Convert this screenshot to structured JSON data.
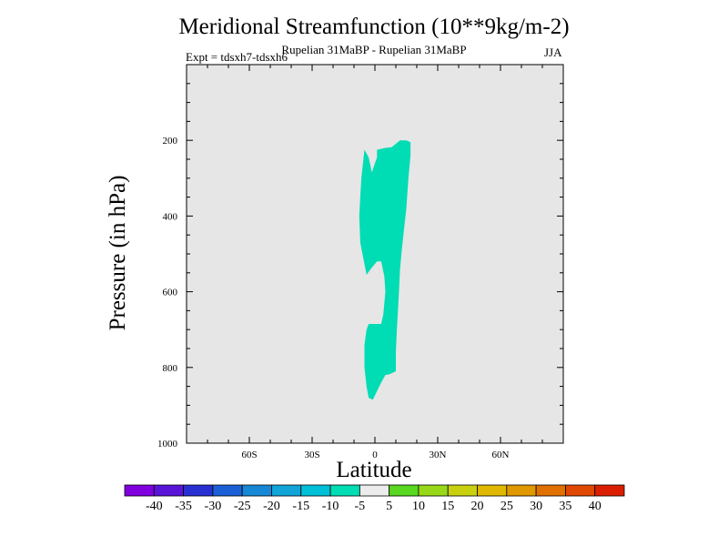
{
  "chart_data": {
    "type": "filled-contour",
    "title": "Meridional Streamfunction (10**9kg/m-2)",
    "subtitle": "Rupelian  31MaBP - Rupelian  31MaBP",
    "season": "JJA",
    "experiment": "Expt = tdsxh7-tdsxh6",
    "xlabel": "Latitude",
    "ylabel": "Pressure (in hPa)",
    "xlim": [
      -90,
      90
    ],
    "ylim": [
      1000,
      0
    ],
    "x_ticks": [
      -60,
      -30,
      0,
      30,
      60
    ],
    "x_tick_labels": [
      "60S",
      "30S",
      "0",
      "30N",
      "60N"
    ],
    "y_ticks": [
      200,
      400,
      600,
      800,
      1000
    ],
    "y_tick_labels": [
      "200",
      "400",
      "600",
      "800",
      "1000"
    ],
    "background_color": "#e6e6e6",
    "contour_region": {
      "level_range": [
        -10,
        -5
      ],
      "color": "#00dcb4",
      "outline": [
        [
          -5,
          225
        ],
        [
          -3,
          245
        ],
        [
          -2,
          270
        ],
        [
          -1.5,
          285
        ],
        [
          1,
          245
        ],
        [
          1,
          225
        ],
        [
          5,
          220
        ],
        [
          8,
          218
        ],
        [
          12,
          200
        ],
        [
          15,
          200
        ],
        [
          17,
          205
        ],
        [
          17,
          240
        ],
        [
          16,
          300
        ],
        [
          15,
          380
        ],
        [
          14,
          430
        ],
        [
          13,
          480
        ],
        [
          12,
          540
        ],
        [
          11.5,
          600
        ],
        [
          11,
          650
        ],
        [
          10.5,
          700
        ],
        [
          10,
          760
        ],
        [
          10,
          810
        ],
        [
          7,
          818
        ],
        [
          5,
          820
        ],
        [
          3,
          840
        ],
        [
          -1,
          885
        ],
        [
          -3,
          880
        ],
        [
          -4,
          850
        ],
        [
          -5,
          800
        ],
        [
          -5,
          740
        ],
        [
          -4,
          700
        ],
        [
          -3,
          685
        ],
        [
          3,
          685
        ],
        [
          4,
          660
        ],
        [
          5,
          600
        ],
        [
          4.5,
          560
        ],
        [
          3,
          520
        ],
        [
          1,
          520
        ],
        [
          -2,
          540
        ],
        [
          -4,
          555
        ],
        [
          -7,
          470
        ],
        [
          -7.5,
          400
        ],
        [
          -7,
          350
        ],
        [
          -6.5,
          300
        ]
      ]
    },
    "colorbar": {
      "labels": [
        "-40",
        "-35",
        "-30",
        "-25",
        "-20",
        "-15",
        "-10",
        "-5",
        "5",
        "10",
        "15",
        "20",
        "25",
        "30",
        "35",
        "40"
      ],
      "colors": [
        "#8000e0",
        "#5a14d8",
        "#2830d2",
        "#1a5fd6",
        "#1688d6",
        "#10a4d8",
        "#00c0d8",
        "#00dcb4",
        "#ececec",
        "#58d820",
        "#98d818",
        "#c8d010",
        "#e0b800",
        "#e09800",
        "#e07000",
        "#e04800",
        "#dc1e00"
      ]
    }
  }
}
